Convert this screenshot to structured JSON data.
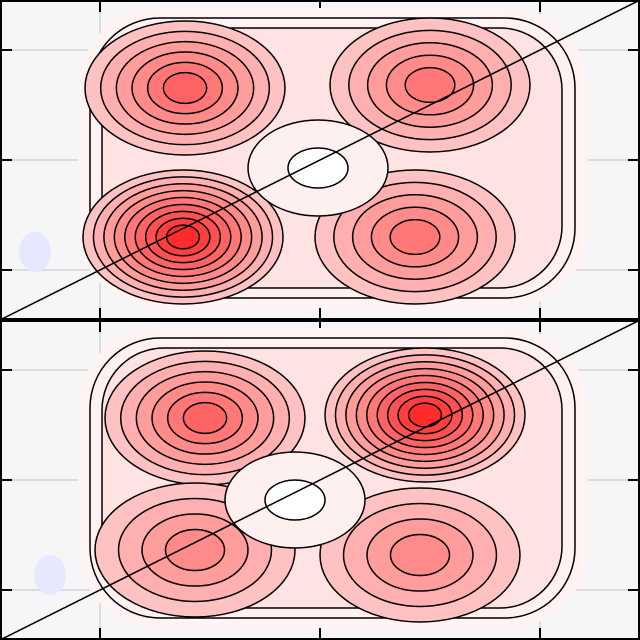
{
  "chart_data": {
    "type": "contour"
  }
}
